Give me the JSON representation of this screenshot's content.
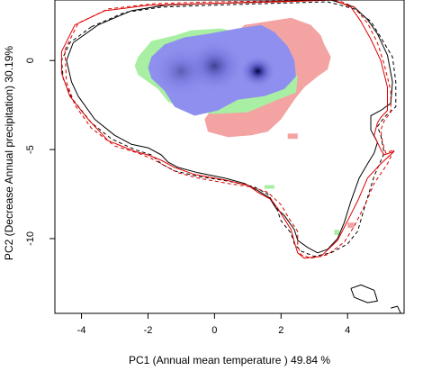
{
  "chart_data": {
    "type": "contour",
    "xlabel": "PC1 (Annual mean temperature ) 49.84 %",
    "ylabel": "PC2 (Decrease Annual precipitation) 30.19%",
    "xlim": [
      -4.8,
      5.7
    ],
    "ylim": [
      -14.2,
      3.4
    ],
    "xticks": [
      -4,
      -2,
      0,
      2,
      4
    ],
    "yticks": [
      0,
      -5,
      -10
    ],
    "colors": {
      "red_line": "#dd0000",
      "black_line": "#000000",
      "blue_fill": "#8f8fef",
      "dark_core": "#000044",
      "red_fill": "#f4a3a3",
      "green_fill": "#a9efa3"
    },
    "series": [
      {
        "kind": "line",
        "color": "#000000",
        "dash": false,
        "points": [
          [
            -3.5,
            2.0
          ],
          [
            -2.5,
            2.8
          ],
          [
            -1.5,
            3.1
          ],
          [
            -0.2,
            3.2
          ],
          [
            1.5,
            3.3
          ],
          [
            3.5,
            3.4
          ],
          [
            4.2,
            3.0
          ],
          [
            4.6,
            2.3
          ],
          [
            4.9,
            1.5
          ],
          [
            5.2,
            0.3
          ],
          [
            5.35,
            -1.2
          ],
          [
            5.3,
            -2.4
          ],
          [
            5.0,
            -2.8
          ],
          [
            4.7,
            -3.1
          ],
          [
            4.7,
            -3.9
          ],
          [
            4.9,
            -4.6
          ],
          [
            4.8,
            -5.2
          ],
          [
            4.6,
            -5.8
          ],
          [
            4.35,
            -6.6
          ],
          [
            4.1,
            -7.9
          ],
          [
            3.9,
            -9.1
          ],
          [
            3.7,
            -10.0
          ],
          [
            3.4,
            -10.6
          ],
          [
            3.1,
            -10.8
          ],
          [
            2.8,
            -10.5
          ],
          [
            2.5,
            -10.1
          ],
          [
            2.4,
            -9.5
          ],
          [
            2.1,
            -8.7
          ],
          [
            1.85,
            -8.3
          ],
          [
            1.65,
            -7.7
          ],
          [
            1.3,
            -7.3
          ],
          [
            0.9,
            -6.9
          ],
          [
            0.3,
            -6.6
          ],
          [
            -0.5,
            -6.3
          ],
          [
            -1.1,
            -6.0
          ],
          [
            -1.4,
            -5.7
          ],
          [
            -1.6,
            -5.3
          ],
          [
            -2.0,
            -4.9
          ],
          [
            -2.5,
            -4.7
          ],
          [
            -3.0,
            -4.2
          ],
          [
            -3.6,
            -3.3
          ],
          [
            -4.1,
            -2.0
          ],
          [
            -4.3,
            -1.2
          ],
          [
            -4.45,
            0.0
          ],
          [
            -4.25,
            1.0
          ],
          [
            -3.5,
            2.0
          ]
        ]
      },
      {
        "kind": "line",
        "color": "#000000",
        "dash": true,
        "points": [
          [
            -3.7,
            1.9
          ],
          [
            -2.7,
            2.7
          ],
          [
            -1.6,
            3.0
          ],
          [
            -0.2,
            3.1
          ],
          [
            1.5,
            3.2
          ],
          [
            3.4,
            3.3
          ],
          [
            4.2,
            2.9
          ],
          [
            4.7,
            2.2
          ],
          [
            5.0,
            1.3
          ],
          [
            5.35,
            0.2
          ],
          [
            5.45,
            -1.2
          ],
          [
            5.45,
            -2.6
          ],
          [
            5.15,
            -3.1
          ],
          [
            4.9,
            -3.7
          ],
          [
            5.0,
            -4.2
          ],
          [
            5.1,
            -5.2
          ],
          [
            4.8,
            -6.5
          ],
          [
            4.55,
            -8.0
          ],
          [
            4.3,
            -9.6
          ],
          [
            4.0,
            -10.3
          ],
          [
            3.5,
            -10.8
          ],
          [
            3.0,
            -11.0
          ],
          [
            2.6,
            -10.7
          ],
          [
            2.4,
            -10.3
          ],
          [
            2.3,
            -9.7
          ],
          [
            2.0,
            -9.0
          ],
          [
            1.85,
            -8.2
          ],
          [
            1.6,
            -7.5
          ],
          [
            1.2,
            -7.1
          ],
          [
            0.5,
            -6.8
          ],
          [
            -0.5,
            -6.5
          ],
          [
            -1.2,
            -6.2
          ],
          [
            -1.6,
            -5.8
          ],
          [
            -1.9,
            -5.3
          ],
          [
            -2.4,
            -5.0
          ],
          [
            -3.1,
            -4.4
          ],
          [
            -3.7,
            -3.5
          ],
          [
            -4.3,
            -2.1
          ],
          [
            -4.55,
            -1.0
          ],
          [
            -4.6,
            0.0
          ],
          [
            -4.35,
            1.0
          ],
          [
            -3.7,
            1.9
          ]
        ]
      },
      {
        "kind": "line",
        "color": "#dd0000",
        "dash": false,
        "points": [
          [
            -4.6,
            0.5
          ],
          [
            -4.2,
            2.0
          ],
          [
            -3.3,
            2.8
          ],
          [
            -2.0,
            3.1
          ],
          [
            -0.3,
            3.2
          ],
          [
            2.0,
            3.3
          ],
          [
            3.6,
            3.4
          ],
          [
            4.1,
            3.0
          ],
          [
            4.4,
            2.2
          ],
          [
            4.7,
            1.2
          ],
          [
            5.0,
            0.0
          ],
          [
            5.2,
            -1.5
          ],
          [
            5.2,
            -2.8
          ],
          [
            5.0,
            -3.2
          ],
          [
            4.9,
            -3.5
          ],
          [
            4.8,
            -4.2
          ],
          [
            4.9,
            -4.6
          ],
          [
            5.0,
            -5.0
          ],
          [
            5.1,
            -5.3
          ],
          [
            5.4,
            -5.1
          ],
          [
            5.0,
            -5.8
          ],
          [
            4.6,
            -6.6
          ],
          [
            4.3,
            -7.9
          ],
          [
            4.0,
            -9.0
          ],
          [
            3.7,
            -10.1
          ],
          [
            3.2,
            -11.0
          ],
          [
            2.7,
            -11.1
          ],
          [
            2.5,
            -10.8
          ],
          [
            2.4,
            -10.2
          ],
          [
            2.3,
            -9.5
          ],
          [
            2.1,
            -8.9
          ],
          [
            1.9,
            -8.3
          ],
          [
            1.7,
            -7.8
          ],
          [
            1.3,
            -7.4
          ],
          [
            1.0,
            -7.0
          ],
          [
            0.3,
            -6.7
          ],
          [
            -0.6,
            -6.4
          ],
          [
            -1.2,
            -6.0
          ],
          [
            -1.6,
            -5.6
          ],
          [
            -2.0,
            -5.3
          ],
          [
            -2.4,
            -5.1
          ],
          [
            -3.2,
            -4.5
          ],
          [
            -3.8,
            -3.3
          ],
          [
            -4.35,
            -2.0
          ],
          [
            -4.6,
            -0.7
          ],
          [
            -4.6,
            0.5
          ]
        ]
      },
      {
        "kind": "line",
        "color": "#dd0000",
        "dash": true,
        "points": [
          [
            -4.5,
            0.6
          ],
          [
            -4.1,
            2.1
          ],
          [
            -3.2,
            2.9
          ],
          [
            -1.8,
            3.2
          ],
          [
            0.0,
            3.3
          ],
          [
            2.2,
            3.35
          ],
          [
            3.7,
            3.4
          ],
          [
            4.2,
            3.0
          ],
          [
            4.6,
            2.1
          ],
          [
            4.9,
            1.0
          ],
          [
            5.1,
            -0.2
          ],
          [
            5.3,
            -1.7
          ],
          [
            5.3,
            -2.9
          ],
          [
            5.1,
            -3.4
          ],
          [
            5.0,
            -3.9
          ],
          [
            5.05,
            -4.6
          ],
          [
            5.15,
            -5.2
          ],
          [
            5.4,
            -5.0
          ],
          [
            5.2,
            -5.8
          ],
          [
            4.8,
            -6.9
          ],
          [
            4.5,
            -8.2
          ],
          [
            4.2,
            -9.3
          ],
          [
            3.9,
            -10.2
          ],
          [
            3.4,
            -10.9
          ],
          [
            2.9,
            -11.1
          ],
          [
            2.6,
            -10.9
          ],
          [
            2.5,
            -10.4
          ],
          [
            2.5,
            -9.6
          ],
          [
            2.25,
            -8.9
          ],
          [
            2.0,
            -8.1
          ],
          [
            1.6,
            -7.4
          ],
          [
            1.1,
            -7.1
          ],
          [
            0.4,
            -6.9
          ],
          [
            -0.5,
            -6.6
          ],
          [
            -1.1,
            -6.3
          ],
          [
            -1.5,
            -5.9
          ],
          [
            -1.9,
            -5.5
          ],
          [
            -2.3,
            -5.2
          ],
          [
            -3.0,
            -4.8
          ],
          [
            -3.7,
            -3.8
          ],
          [
            -4.2,
            -2.5
          ],
          [
            -4.45,
            -1.2
          ],
          [
            -4.5,
            0.6
          ]
        ]
      },
      {
        "kind": "line",
        "color": "#000000",
        "dash": false,
        "points": [
          [
            4.1,
            -12.8
          ],
          [
            4.4,
            -12.6
          ],
          [
            4.8,
            -12.9
          ],
          [
            4.9,
            -13.5
          ],
          [
            4.6,
            -13.6
          ],
          [
            4.2,
            -13.3
          ],
          [
            4.1,
            -12.8
          ]
        ]
      },
      {
        "kind": "line",
        "color": "#000000",
        "dash": false,
        "points": [
          [
            5.3,
            -13.9
          ],
          [
            5.5,
            -13.8
          ],
          [
            5.6,
            -14.2
          ]
        ]
      },
      {
        "kind": "fill",
        "color": "#f4a3a3",
        "points": [
          [
            0.3,
            1.0
          ],
          [
            0.9,
            2.0
          ],
          [
            1.6,
            2.2
          ],
          [
            2.3,
            2.4
          ],
          [
            2.9,
            2.0
          ],
          [
            3.2,
            1.4
          ],
          [
            3.3,
            0.9
          ],
          [
            3.5,
            0.2
          ],
          [
            3.4,
            -0.5
          ],
          [
            3.1,
            -0.9
          ],
          [
            2.7,
            -1.5
          ],
          [
            2.4,
            -2.2
          ],
          [
            2.0,
            -3.3
          ],
          [
            1.6,
            -4.0
          ],
          [
            1.1,
            -4.2
          ],
          [
            0.4,
            -4.3
          ],
          [
            -0.2,
            -4.0
          ],
          [
            -0.3,
            -3.3
          ],
          [
            0.0,
            -2.5
          ],
          [
            0.4,
            -1.7
          ],
          [
            0.5,
            -0.6
          ],
          [
            0.3,
            1.0
          ]
        ]
      },
      {
        "kind": "fill",
        "color": "#a9efa3",
        "points": [
          [
            -2.3,
            0.2
          ],
          [
            -1.9,
            1.1
          ],
          [
            -1.2,
            1.4
          ],
          [
            -0.7,
            1.7
          ],
          [
            0.2,
            1.8
          ],
          [
            1.1,
            1.4
          ],
          [
            1.7,
            0.6
          ],
          [
            2.1,
            0.0
          ],
          [
            2.5,
            -0.9
          ],
          [
            2.45,
            -1.8
          ],
          [
            1.9,
            -2.2
          ],
          [
            1.0,
            -2.9
          ],
          [
            0.0,
            -3.0
          ],
          [
            -0.9,
            -2.8
          ],
          [
            -1.4,
            -2.3
          ],
          [
            -1.7,
            -1.6
          ],
          [
            -2.3,
            -0.8
          ],
          [
            -2.4,
            -0.3
          ],
          [
            -2.3,
            0.2
          ]
        ]
      },
      {
        "kind": "fill",
        "color": "#8f8fef",
        "points": [
          [
            -1.9,
            0.2
          ],
          [
            -1.5,
            0.9
          ],
          [
            -0.9,
            1.3
          ],
          [
            -0.2,
            1.5
          ],
          [
            0.7,
            1.8
          ],
          [
            1.4,
            2.0
          ],
          [
            1.8,
            1.6
          ],
          [
            2.2,
            0.8
          ],
          [
            2.4,
            0.0
          ],
          [
            2.45,
            -0.9
          ],
          [
            2.1,
            -1.6
          ],
          [
            1.5,
            -2.0
          ],
          [
            0.7,
            -2.2
          ],
          [
            0.1,
            -2.8
          ],
          [
            -0.6,
            -3.1
          ],
          [
            -1.2,
            -2.6
          ],
          [
            -1.5,
            -1.7
          ],
          [
            -1.9,
            -1.0
          ],
          [
            -2.0,
            -0.4
          ],
          [
            -1.9,
            0.2
          ]
        ]
      },
      {
        "kind": "blob",
        "color": "#a9efa3",
        "points": [
          [
            1.5,
            -7.2
          ],
          [
            1.8,
            -7.2
          ],
          [
            1.8,
            -7.0
          ],
          [
            1.5,
            -7.0
          ]
        ]
      },
      {
        "kind": "blob",
        "color": "#a9efa3",
        "points": [
          [
            3.6,
            -9.8
          ],
          [
            3.75,
            -9.8
          ],
          [
            3.75,
            -9.5
          ],
          [
            3.6,
            -9.5
          ]
        ]
      },
      {
        "kind": "blob",
        "color": "#f4a3a3",
        "points": [
          [
            2.2,
            -4.4
          ],
          [
            2.5,
            -4.4
          ],
          [
            2.5,
            -4.1
          ],
          [
            2.2,
            -4.1
          ]
        ]
      },
      {
        "kind": "blob",
        "color": "#f4a3a3",
        "points": [
          [
            4.0,
            -9.4
          ],
          [
            4.2,
            -9.4
          ],
          [
            4.2,
            -9.1
          ],
          [
            4.0,
            -9.1
          ]
        ]
      }
    ],
    "density_peaks": [
      {
        "x": 1.3,
        "y": -0.6,
        "strength": 1.0,
        "spread": 0.55
      },
      {
        "x": 0.0,
        "y": -0.3,
        "strength": 0.55,
        "spread": 0.9
      },
      {
        "x": -1.0,
        "y": -0.6,
        "strength": 0.35,
        "spread": 0.9
      }
    ]
  }
}
